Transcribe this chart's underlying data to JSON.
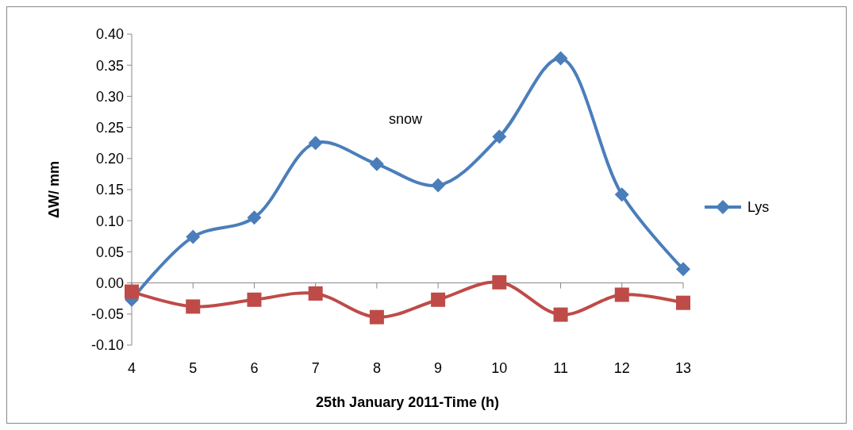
{
  "chart_data": {
    "type": "line",
    "xlabel": "25th January 2011-Time (h)",
    "ylabel": "ΔW/ mm",
    "categories": [
      "4",
      "5",
      "6",
      "7",
      "8",
      "9",
      "10",
      "11",
      "12",
      "13"
    ],
    "series": [
      {
        "name": "Lys",
        "color": "#4a7ebb",
        "marker": "diamond",
        "values": [
          -0.027,
          0.074,
          0.105,
          0.225,
          0.191,
          0.157,
          0.235,
          0.361,
          0.142,
          0.022
        ]
      },
      {
        "color": "#be4b48",
        "marker": "square",
        "values": [
          -0.014,
          -0.038,
          -0.027,
          -0.017,
          -0.055,
          -0.027,
          0.001,
          -0.051,
          -0.019,
          -0.032
        ]
      }
    ],
    "ylim": [
      -0.1,
      0.4
    ],
    "yticks": [
      {
        "value": -0.1,
        "label": "-0.10"
      },
      {
        "value": -0.05,
        "label": "-0.05"
      },
      {
        "value": 0,
        "label": "0.00"
      },
      {
        "value": 0.05,
        "label": "0.05"
      },
      {
        "value": 0.1,
        "label": "0.10"
      },
      {
        "value": 0.15,
        "label": "0.15"
      },
      {
        "value": 0.2,
        "label": "0.20"
      },
      {
        "value": 0.25,
        "label": "0.25"
      },
      {
        "value": 0.3,
        "label": "0.30"
      },
      {
        "value": 0.35,
        "label": "0.35"
      },
      {
        "value": 0.4,
        "label": "0.40"
      }
    ],
    "annotations": [
      "snow"
    ],
    "legend": "right"
  }
}
